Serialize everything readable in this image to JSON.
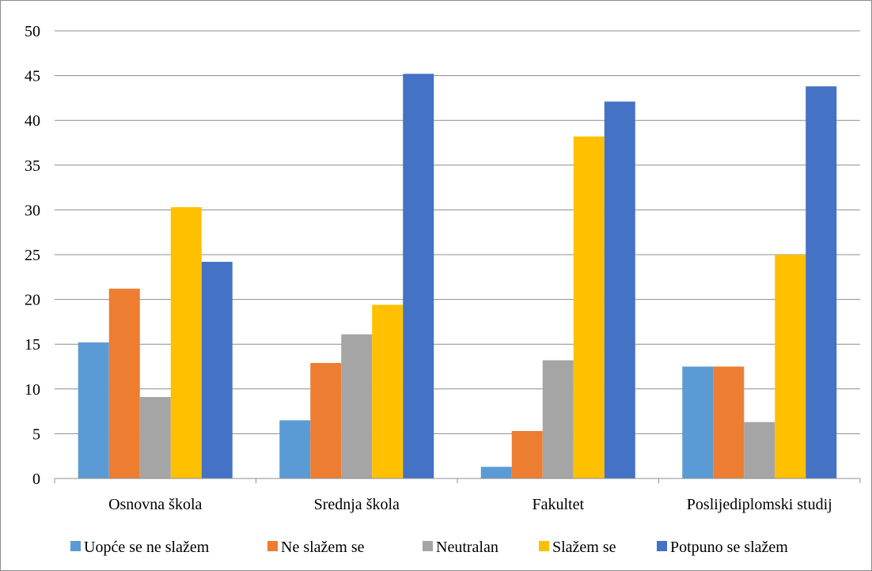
{
  "chart_data": {
    "type": "bar",
    "title": "",
    "xlabel": "",
    "ylabel": "",
    "categories": [
      "Osnovna škola",
      "Srednja škola",
      "Fakultet",
      "Poslijediplomski studij"
    ],
    "ylim": [
      0,
      50
    ],
    "yticks": [
      0,
      5,
      10,
      15,
      20,
      25,
      30,
      35,
      40,
      45,
      50
    ],
    "grid": true,
    "legend_position": "bottom",
    "series": [
      {
        "name": "Uopće se ne slažem",
        "color": "#5B9BD5",
        "values": [
          15.2,
          6.5,
          1.3,
          12.5
        ]
      },
      {
        "name": "Ne slažem se",
        "color": "#ED7D31",
        "values": [
          21.2,
          12.9,
          5.3,
          12.5
        ]
      },
      {
        "name": "Neutralan",
        "color": "#A5A5A5",
        "values": [
          9.1,
          16.1,
          13.2,
          6.3
        ]
      },
      {
        "name": "Slažem se",
        "color": "#FFC000",
        "values": [
          30.3,
          19.4,
          38.2,
          25.0
        ]
      },
      {
        "name": "Potpuno se slažem",
        "color": "#4472C4",
        "values": [
          24.2,
          45.2,
          42.1,
          43.8
        ]
      }
    ]
  }
}
